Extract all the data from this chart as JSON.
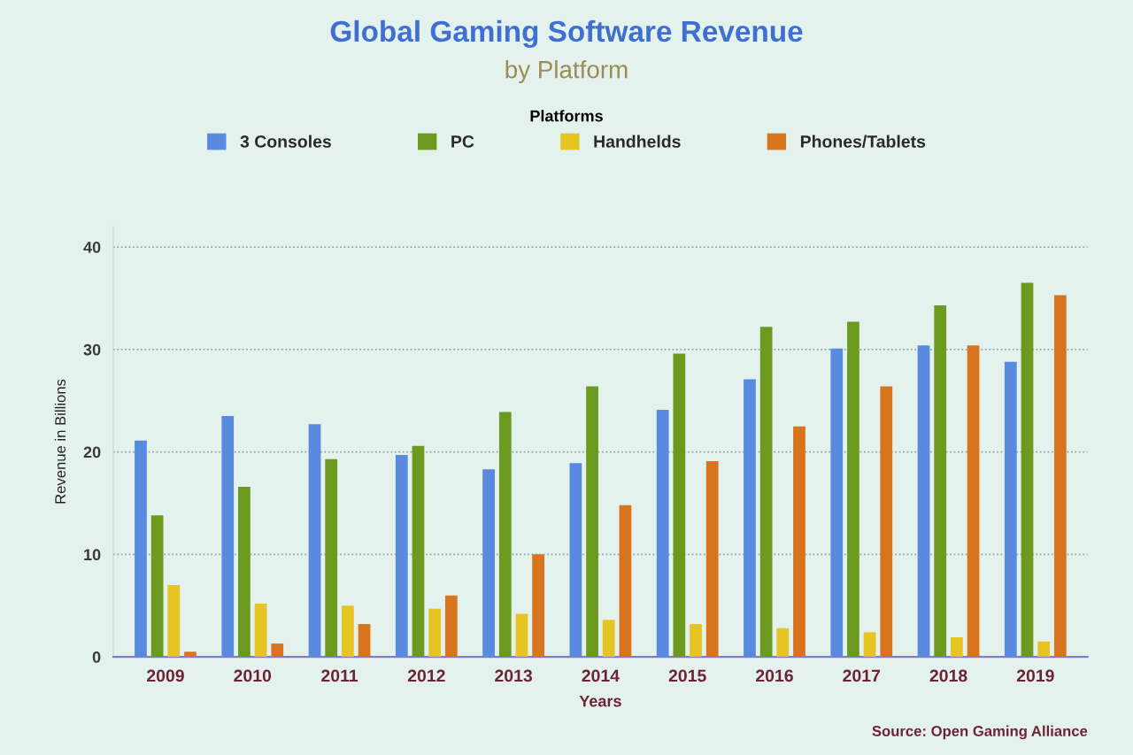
{
  "chart_data": {
    "type": "bar",
    "title": "Global Gaming Software Revenue",
    "subtitle": "by Platform",
    "legend_title": "Platforms",
    "xlabel": "Years",
    "ylabel": "Revenue in Billions",
    "annotations": [
      "Source: Open Gaming Alliance"
    ],
    "categories": [
      "2009",
      "2010",
      "2011",
      "2012",
      "2013",
      "2014",
      "2015",
      "2016",
      "2017",
      "2018",
      "2019"
    ],
    "series": [
      {
        "name": "3 Consoles",
        "color": "#5a8ae0",
        "values": [
          21.1,
          23.5,
          22.7,
          19.7,
          18.3,
          18.9,
          24.1,
          27.1,
          30.1,
          30.4,
          28.8
        ]
      },
      {
        "name": "PC",
        "color": "#6b9a1e",
        "values": [
          13.8,
          16.6,
          19.3,
          20.6,
          23.9,
          26.4,
          29.6,
          32.2,
          32.7,
          34.3,
          36.5
        ]
      },
      {
        "name": "Handhelds",
        "color": "#e6c421",
        "values": [
          7.0,
          5.2,
          5.0,
          4.7,
          4.2,
          3.6,
          3.2,
          2.8,
          2.4,
          1.9,
          1.5
        ]
      },
      {
        "name": "Phones/Tablets",
        "color": "#d8741e",
        "values": [
          0.5,
          1.3,
          3.2,
          6.0,
          10.0,
          14.8,
          19.1,
          22.5,
          26.4,
          30.4,
          35.3
        ]
      }
    ],
    "ylim": [
      0,
      42
    ],
    "yticks": [
      0,
      10,
      20,
      30,
      40
    ],
    "grid": "y",
    "legend": "top"
  }
}
